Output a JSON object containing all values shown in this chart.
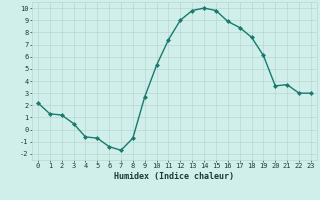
{
  "x": [
    0,
    1,
    2,
    3,
    4,
    5,
    6,
    7,
    8,
    9,
    10,
    11,
    12,
    13,
    14,
    15,
    16,
    17,
    18,
    19,
    20,
    21,
    22,
    23
  ],
  "y": [
    2.2,
    1.3,
    1.2,
    0.5,
    -0.6,
    -0.7,
    -1.4,
    -1.7,
    -0.7,
    2.7,
    5.3,
    7.4,
    9.0,
    9.8,
    10.0,
    9.8,
    8.9,
    8.4,
    7.6,
    6.1,
    3.6,
    3.7,
    3.0,
    3.0
  ],
  "line_color": "#1a7a6e",
  "marker": "D",
  "marker_size": 2.0,
  "xlabel": "Humidex (Indice chaleur)",
  "xlim": [
    -0.5,
    23.5
  ],
  "ylim": [
    -2.5,
    10.5
  ],
  "yticks": [
    -2,
    -1,
    0,
    1,
    2,
    3,
    4,
    5,
    6,
    7,
    8,
    9,
    10
  ],
  "xticks": [
    0,
    1,
    2,
    3,
    4,
    5,
    6,
    7,
    8,
    9,
    10,
    11,
    12,
    13,
    14,
    15,
    16,
    17,
    18,
    19,
    20,
    21,
    22,
    23
  ],
  "background_color": "#d0eeea",
  "grid_color": "#b8d8d4",
  "font_color": "#1a3a3a",
  "tick_fontsize": 5.0,
  "xlabel_fontsize": 6.0,
  "linewidth": 1.0
}
